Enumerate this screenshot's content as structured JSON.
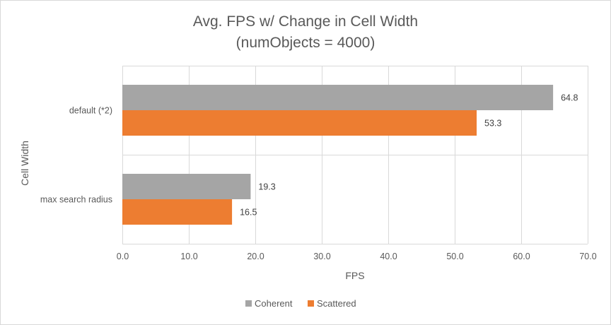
{
  "chart_data": {
    "type": "bar",
    "orientation": "horizontal",
    "title": "Avg. FPS w/ Change in Cell Width",
    "subtitle": "(numObjects = 4000)",
    "xlabel": "FPS",
    "ylabel": "Cell Width",
    "categories": [
      "default (*2)",
      "max search radius"
    ],
    "series": [
      {
        "name": "Coherent",
        "values": [
          64.8,
          19.3
        ],
        "labels": [
          "64.8",
          "19.3"
        ],
        "color": "#a5a5a5"
      },
      {
        "name": "Scattered",
        "values": [
          53.3,
          16.5
        ],
        "labels": [
          "53.3",
          "16.5"
        ],
        "color": "#ed7d31"
      }
    ],
    "xlim": [
      0,
      70
    ],
    "xticks": [
      "0.0",
      "10.0",
      "20.0",
      "30.0",
      "40.0",
      "50.0",
      "60.0",
      "70.0"
    ],
    "grid": true,
    "legend_position": "bottom"
  }
}
